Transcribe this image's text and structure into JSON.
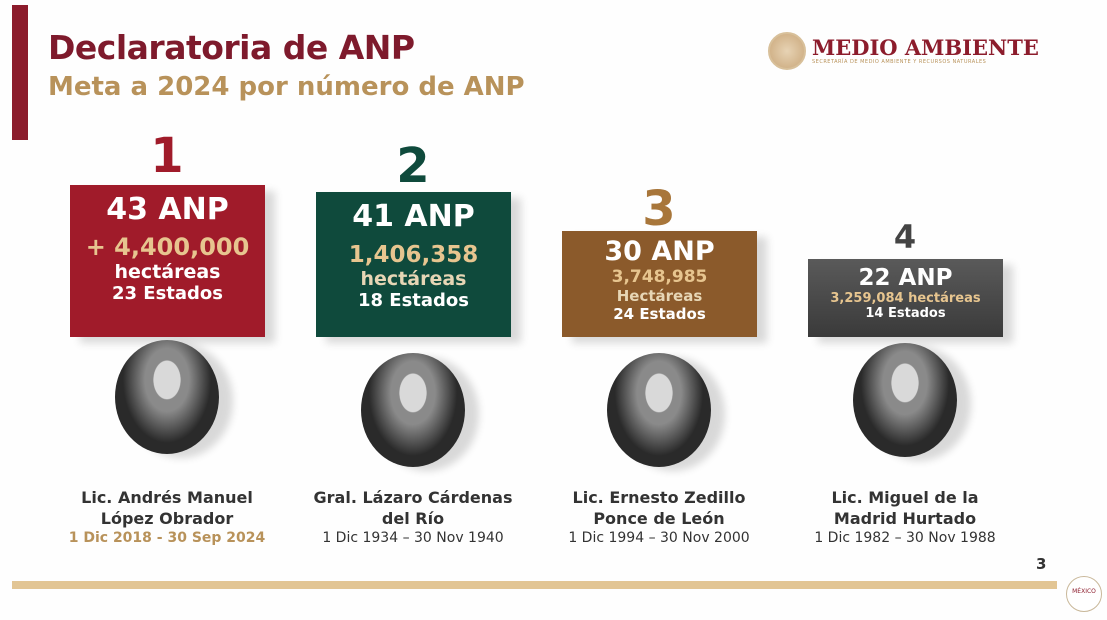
{
  "header": {
    "title": "Declaratoria de ANP",
    "subtitle": "Meta a 2024 por número de ANP",
    "logo_text": "MEDIO AMBIENTE",
    "logo_subtext": "SECRETARÍA DE MEDIO AMBIENTE Y RECURSOS NATURALES"
  },
  "colors": {
    "maroon": "#8c1c2c",
    "gold": "#b8925a",
    "green": "#0f4a3c",
    "brown": "#8b5a2b",
    "gray": "#4a4a4a"
  },
  "cards": [
    {
      "rank": "1",
      "anp": "43 ANP",
      "hectares": "+ 4,400,000",
      "hectares_label": "hectáreas",
      "states": "23 Estados",
      "name_line1": "Lic. Andrés Manuel",
      "name_line2": "López Obrador",
      "dates": "1 Dic 2018 - 30 Sep 2024"
    },
    {
      "rank": "2",
      "anp": "41 ANP",
      "hectares": "1,406,358",
      "hectares_label": "hectáreas",
      "states": "18 Estados",
      "name_line1": "Gral. Lázaro Cárdenas",
      "name_line2": "del Río",
      "dates": "1 Dic 1934 – 30 Nov 1940"
    },
    {
      "rank": "3",
      "anp": "30 ANP",
      "hectares": "3,748,985",
      "hectares_label": "Hectáreas",
      "states": "24 Estados",
      "name_line1": "Lic. Ernesto Zedillo",
      "name_line2": "Ponce de León",
      "dates": "1 Dic 1994 – 30 Nov 2000"
    },
    {
      "rank": "4",
      "anp": "22 ANP",
      "hectares": "3,259,084 hectáreas",
      "hectares_label": "",
      "states": "14 Estados",
      "name_line1": "Lic. Miguel de la",
      "name_line2": "Madrid Hurtado",
      "dates": "1 Dic 1982 – 30 Nov 1988"
    }
  ],
  "footer": {
    "page_number": "3",
    "gov_logo_text": "MÉXICO"
  }
}
